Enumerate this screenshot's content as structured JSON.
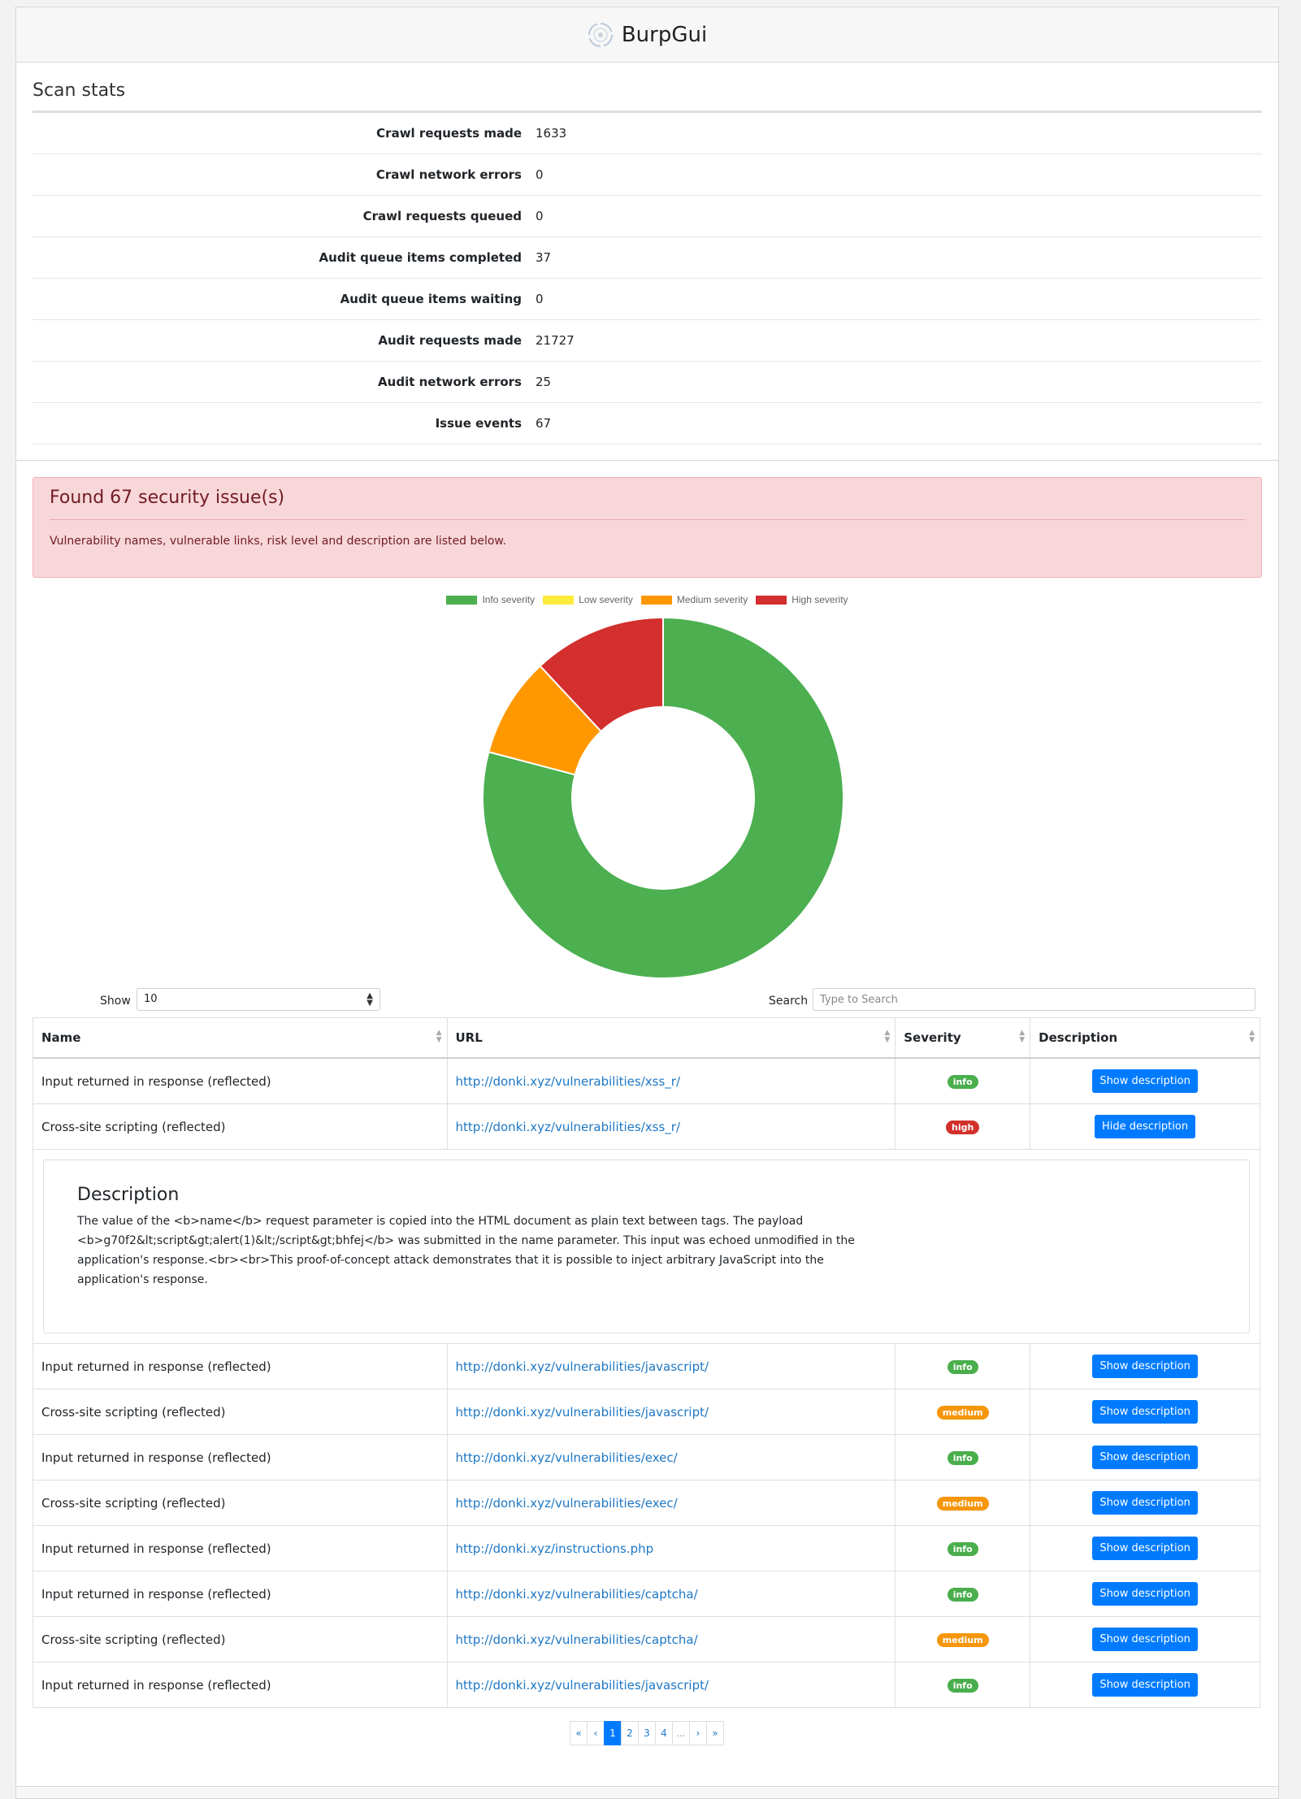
{
  "header": {
    "title": "BurpGui",
    "logo_icon": "target-logo-icon"
  },
  "stats": {
    "title": "Scan stats",
    "rows": [
      {
        "label": "Crawl requests made",
        "value": "1633"
      },
      {
        "label": "Crawl network errors",
        "value": "0"
      },
      {
        "label": "Crawl requests queued",
        "value": "0"
      },
      {
        "label": "Audit queue items completed",
        "value": "37"
      },
      {
        "label": "Audit queue items waiting",
        "value": "0"
      },
      {
        "label": "Audit requests made",
        "value": "21727"
      },
      {
        "label": "Audit network errors",
        "value": "25"
      },
      {
        "label": "Issue events",
        "value": "67"
      }
    ]
  },
  "alert": {
    "title": "Found 67 security issue(s)",
    "text": "Vulnerability names, vulnerable links, risk level and description are listed below."
  },
  "chart_data": {
    "type": "pie",
    "legend_position": "top",
    "categories": [
      "Info severity",
      "Low severity",
      "Medium severity",
      "High severity"
    ],
    "values": [
      53,
      0,
      6,
      8
    ],
    "colors": [
      "#4caf50",
      "#ffeb3b",
      "#ff9800",
      "#d32f2f"
    ]
  },
  "controls": {
    "show_label": "Show",
    "show_value": "10",
    "search_label": "Search",
    "search_placeholder": "Type to Search"
  },
  "table": {
    "headers": [
      "Name",
      "URL",
      "Severity",
      "Description"
    ],
    "rows": [
      {
        "name": "Input returned in response (reflected)",
        "url": "http://donki.xyz/vulnerabilities/xss_r/",
        "severity": "info",
        "button": "Show description"
      },
      {
        "name": "Cross-site scripting (reflected)",
        "url": "http://donki.xyz/vulnerabilities/xss_r/",
        "severity": "high",
        "button": "Hide description"
      },
      {
        "name": "Input returned in response (reflected)",
        "url": "http://donki.xyz/vulnerabilities/javascript/",
        "severity": "info",
        "button": "Show description"
      },
      {
        "name": "Cross-site scripting (reflected)",
        "url": "http://donki.xyz/vulnerabilities/javascript/",
        "severity": "medium",
        "button": "Show description"
      },
      {
        "name": "Input returned in response (reflected)",
        "url": "http://donki.xyz/vulnerabilities/exec/",
        "severity": "info",
        "button": "Show description"
      },
      {
        "name": "Cross-site scripting (reflected)",
        "url": "http://donki.xyz/vulnerabilities/exec/",
        "severity": "medium",
        "button": "Show description"
      },
      {
        "name": "Input returned in response (reflected)",
        "url": "http://donki.xyz/instructions.php",
        "severity": "info",
        "button": "Show description"
      },
      {
        "name": "Input returned in response (reflected)",
        "url": "http://donki.xyz/vulnerabilities/captcha/",
        "severity": "info",
        "button": "Show description"
      },
      {
        "name": "Cross-site scripting (reflected)",
        "url": "http://donki.xyz/vulnerabilities/captcha/",
        "severity": "medium",
        "button": "Show description"
      },
      {
        "name": "Input returned in response (reflected)",
        "url": "http://donki.xyz/vulnerabilities/javascript/",
        "severity": "info",
        "button": "Show description"
      }
    ],
    "expanded_description": {
      "title": "Description",
      "text": "The value of the <b>name</b> request parameter is copied into the HTML document as plain text between tags. The payload <b>g70f2&lt;script&gt;alert(1)&lt;/script&gt;bhfej</b> was submitted in the name parameter. This input was echoed unmodified in the application's response.<br><br>This proof-of-concept attack demonstrates that it is possible to inject arbitrary JavaScript into the application's response."
    }
  },
  "pagination": [
    "«",
    "‹",
    "1",
    "2",
    "3",
    "4",
    "...",
    "›",
    "»"
  ],
  "pagination_active": "1"
}
